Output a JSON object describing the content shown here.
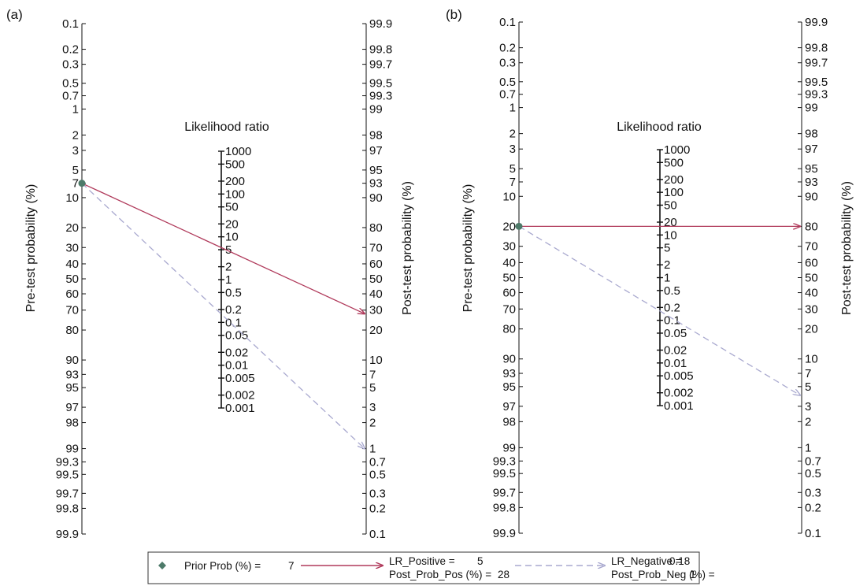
{
  "colors": {
    "positive_line": "#b03a5b",
    "negative_line": "#a9a9cf",
    "prior_marker": "#4d7a69",
    "axis": "#111111"
  },
  "chart_data": [
    {
      "type": "nomogram",
      "panel_label": "(a)",
      "left_axis_label": "Pre-test probability (%)",
      "middle_axis_label": "Likelihood ratio",
      "right_axis_label": "Post-test probability (%)",
      "pretest_ticks": [
        "0.1",
        "0.2",
        "0.3",
        "0.5",
        "0.7",
        "1",
        "2",
        "3",
        "5",
        "7",
        "10",
        "20",
        "30",
        "40",
        "50",
        "60",
        "70",
        "80",
        "90",
        "93",
        "95",
        "97",
        "98",
        "99",
        "99.3",
        "99.5",
        "99.7",
        "99.8",
        "99.9"
      ],
      "lr_ticks": [
        "1000",
        "500",
        "200",
        "100",
        "50",
        "20",
        "10",
        "5",
        "2",
        "1",
        "0.5",
        "0.2",
        "0.1",
        "0.05",
        "0.02",
        "0.01",
        "0.005",
        "0.002",
        "0.001"
      ],
      "posttest_ticks": [
        "99.9",
        "99.8",
        "99.7",
        "99.5",
        "99.3",
        "99",
        "98",
        "97",
        "95",
        "93",
        "90",
        "80",
        "70",
        "60",
        "50",
        "40",
        "30",
        "20",
        "10",
        "7",
        "5",
        "3",
        "2",
        "1",
        "0.7",
        "0.5",
        "0.3",
        "0.2",
        "0.1"
      ],
      "prior_prob": 7,
      "lr_positive": 5,
      "post_prob_pos": 28,
      "lr_negative": 0.18,
      "post_prob_neg": 1
    },
    {
      "type": "nomogram",
      "panel_label": "(b)",
      "left_axis_label": "Pre-test probability (%)",
      "middle_axis_label": "Likelihood ratio",
      "right_axis_label": "Post-test probability (%)",
      "pretest_ticks": [
        "0.1",
        "0.2",
        "0.3",
        "0.5",
        "0.7",
        "1",
        "2",
        "3",
        "5",
        "7",
        "10",
        "20",
        "30",
        "40",
        "50",
        "60",
        "70",
        "80",
        "90",
        "93",
        "95",
        "97",
        "98",
        "99",
        "99.3",
        "99.5",
        "99.7",
        "99.8",
        "99.9"
      ],
      "lr_ticks": [
        "1000",
        "500",
        "200",
        "100",
        "50",
        "20",
        "10",
        "5",
        "2",
        "1",
        "0.5",
        "0.2",
        "0.1",
        "0.05",
        "0.02",
        "0.01",
        "0.005",
        "0.002",
        "0.001"
      ],
      "posttest_ticks": [
        "99.9",
        "99.8",
        "99.7",
        "99.5",
        "99.3",
        "99",
        "98",
        "97",
        "95",
        "93",
        "90",
        "80",
        "70",
        "60",
        "50",
        "40",
        "30",
        "20",
        "10",
        "7",
        "5",
        "3",
        "2",
        "1",
        "0.7",
        "0.5",
        "0.3",
        "0.2",
        "0.1"
      ],
      "prior_prob": 20,
      "lr_positive": 16,
      "post_prob_pos": 80,
      "lr_negative": 0.16,
      "post_prob_neg": 4
    }
  ],
  "legend": {
    "prior_label": "Prior Prob (%) =",
    "prior_value": "7",
    "lr_pos_label": "LR_Positive =",
    "lr_pos_value": "5",
    "post_pos_label": "Post_Prob_Pos (%) =",
    "post_pos_value": "28",
    "lr_neg_label": "LR_Negative =",
    "lr_neg_value": "0.18",
    "post_neg_label": "Post_Prob_Neg (%) =",
    "post_neg_value": "1"
  }
}
